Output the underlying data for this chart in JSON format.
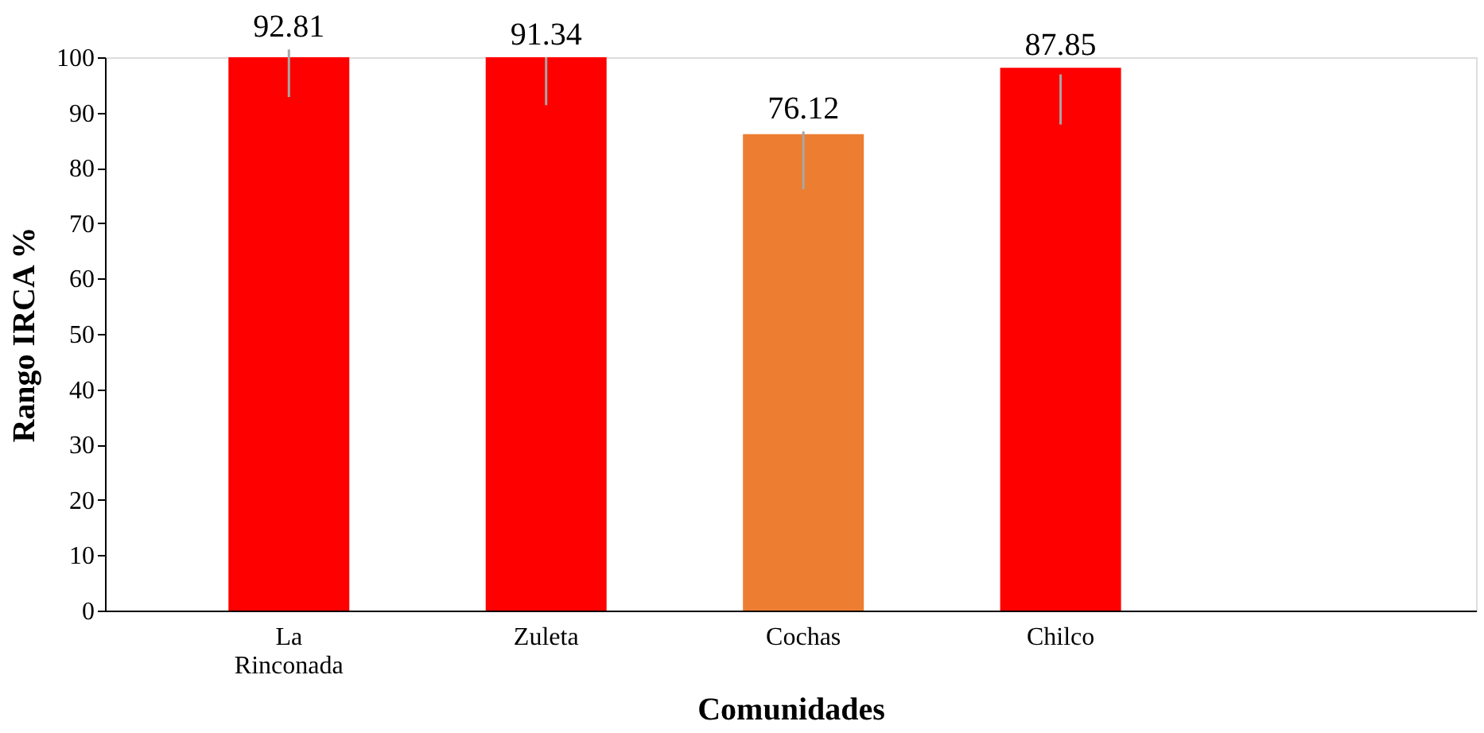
{
  "chart_data": {
    "type": "bar",
    "xlabel": "Comunidades",
    "ylabel": "Rango IRCA %",
    "categories": [
      "La Rinconada",
      "Zuleta",
      "Cochas",
      "Chilco"
    ],
    "values": [
      100,
      100,
      86.1,
      98.1
    ],
    "colors": [
      "#ff0000",
      "#ff0000",
      "#ed7d31",
      "#ff0000"
    ],
    "errors": [
      [
        92.81,
        101.4
      ],
      [
        91.34,
        100
      ],
      [
        76.12,
        86.6
      ],
      [
        87.85,
        96.9
      ]
    ],
    "annotations": [
      "92.81",
      "91.34",
      "76.12",
      "87.85"
    ],
    "ylim": [
      0,
      100
    ],
    "yticks": [
      0,
      10,
      20,
      30,
      40,
      50,
      60,
      70,
      80,
      90,
      100
    ],
    "grid": false,
    "legend": false
  }
}
